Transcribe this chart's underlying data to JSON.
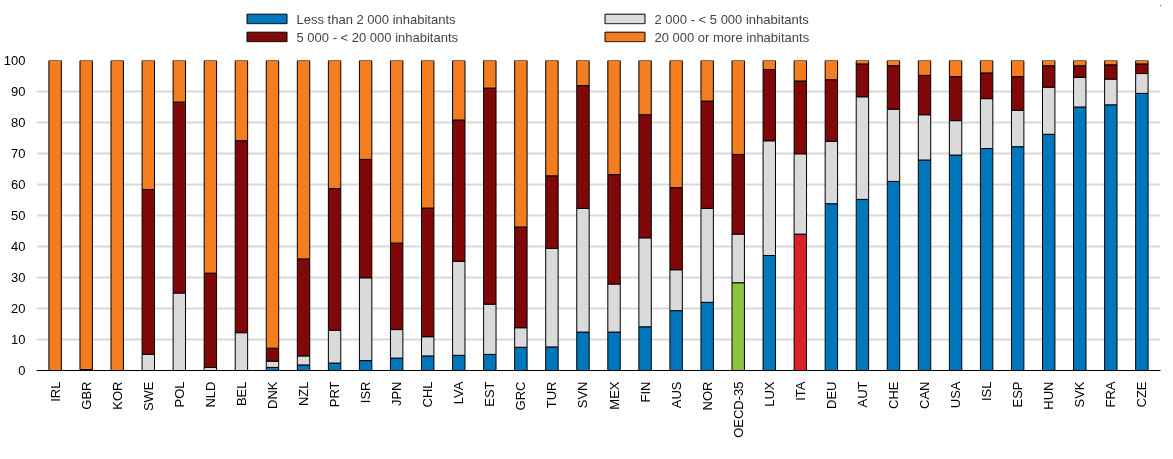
{
  "chart_data": {
    "type": "bar",
    "stacked": true,
    "categories": [
      "IRL",
      "GBR",
      "KOR",
      "SWE",
      "POL",
      "NLD",
      "BEL",
      "DNK",
      "NZL",
      "PRT",
      "ISR",
      "JPN",
      "CHL",
      "LVA",
      "EST",
      "GRC",
      "TUR",
      "SVN",
      "MEX",
      "FIN",
      "AUS",
      "NOR",
      "OECD-35",
      "LUX",
      "ITA",
      "DEU",
      "AUT",
      "CHE",
      "CAN",
      "USA",
      "ISL",
      "ESP",
      "HUN",
      "SVK",
      "FRA",
      "CZE"
    ],
    "series": [
      {
        "name": "Less than 2 000 inhabitants",
        "color": "#0077bd",
        "colors": [
          "#0077bd",
          "#0077bd",
          "#0077bd",
          "#0077bd",
          "#0077bd",
          "#0077bd",
          "#0077bd",
          "#0077bd",
          "#0077bd",
          "#0077bd",
          "#0077bd",
          "#0077bd",
          "#0077bd",
          "#0077bd",
          "#0077bd",
          "#0077bd",
          "#0077bd",
          "#0077bd",
          "#0077bd",
          "#0077bd",
          "#0077bd",
          "#0077bd",
          "#8cc63f",
          "#0077bd",
          "#da2128",
          "#0077bd",
          "#0077bd",
          "#0077bd",
          "#0077bd",
          "#0077bd",
          "#0077bd",
          "#0077bd",
          "#0077bd",
          "#0077bd",
          "#0077bd",
          "#0077bd"
        ],
        "values": [
          0,
          0,
          0,
          0,
          null,
          null,
          null,
          1.0,
          1.8,
          2.4,
          3.2,
          4.0,
          4.7,
          4.9,
          5.2,
          7.5,
          7.6,
          12.4,
          12.4,
          14.1,
          19.3,
          22.0,
          28.3,
          37.1,
          44.0,
          53.8,
          55.2,
          61.0,
          67.9,
          69.5,
          71.6,
          72.2,
          76.2,
          85.0,
          85.7,
          89.4
        ]
      },
      {
        "name": "2 000 - < 5 000 inhabitants",
        "color": "#dadada",
        "values": [
          0,
          0,
          0,
          5.2,
          25.0,
          1.0,
          12.2,
          2.0,
          2.9,
          10.6,
          26.7,
          9.2,
          6.2,
          30.3,
          16.2,
          6.3,
          31.8,
          39.9,
          15.5,
          28.7,
          13.2,
          30.3,
          15.7,
          37.0,
          25.9,
          20.1,
          33.1,
          23.3,
          14.6,
          11.1,
          16.1,
          11.7,
          15.2,
          9.6,
          8.3,
          6.4
        ]
      },
      {
        "name": "5 000 - < 20 000 inhabitants",
        "color": "#800808",
        "values": [
          0,
          0.3,
          null,
          53.2,
          61.6,
          30.4,
          61.9,
          4.2,
          31.3,
          45.7,
          38.2,
          27.9,
          41.5,
          45.6,
          69.7,
          32.5,
          23.4,
          39.6,
          35.3,
          39.7,
          26.5,
          34.6,
          25.7,
          23.0,
          23.5,
          19.9,
          10.6,
          14.0,
          12.7,
          14.2,
          8.3,
          10.9,
          6.9,
          3.7,
          4.6,
          3.1
        ]
      },
      {
        "name": "20 000 or more inhabitants",
        "color": "#f47d20",
        "values": [
          100,
          99.7,
          100,
          41.6,
          13.4,
          68.6,
          25.9,
          92.8,
          64.0,
          41.3,
          31.9,
          58.9,
          47.6,
          19.2,
          8.9,
          53.7,
          37.2,
          8.1,
          36.8,
          17.5,
          41.0,
          13.1,
          30.3,
          2.9,
          6.6,
          6.2,
          1.1,
          1.7,
          4.8,
          5.2,
          4.0,
          5.2,
          1.7,
          1.7,
          1.4,
          1.1
        ]
      }
    ],
    "ylim": [
      0,
      100
    ],
    "yticks": [
      0,
      10,
      20,
      30,
      40,
      50,
      60,
      70,
      80,
      90,
      100
    ],
    "grid": "y",
    "legend": "top"
  }
}
